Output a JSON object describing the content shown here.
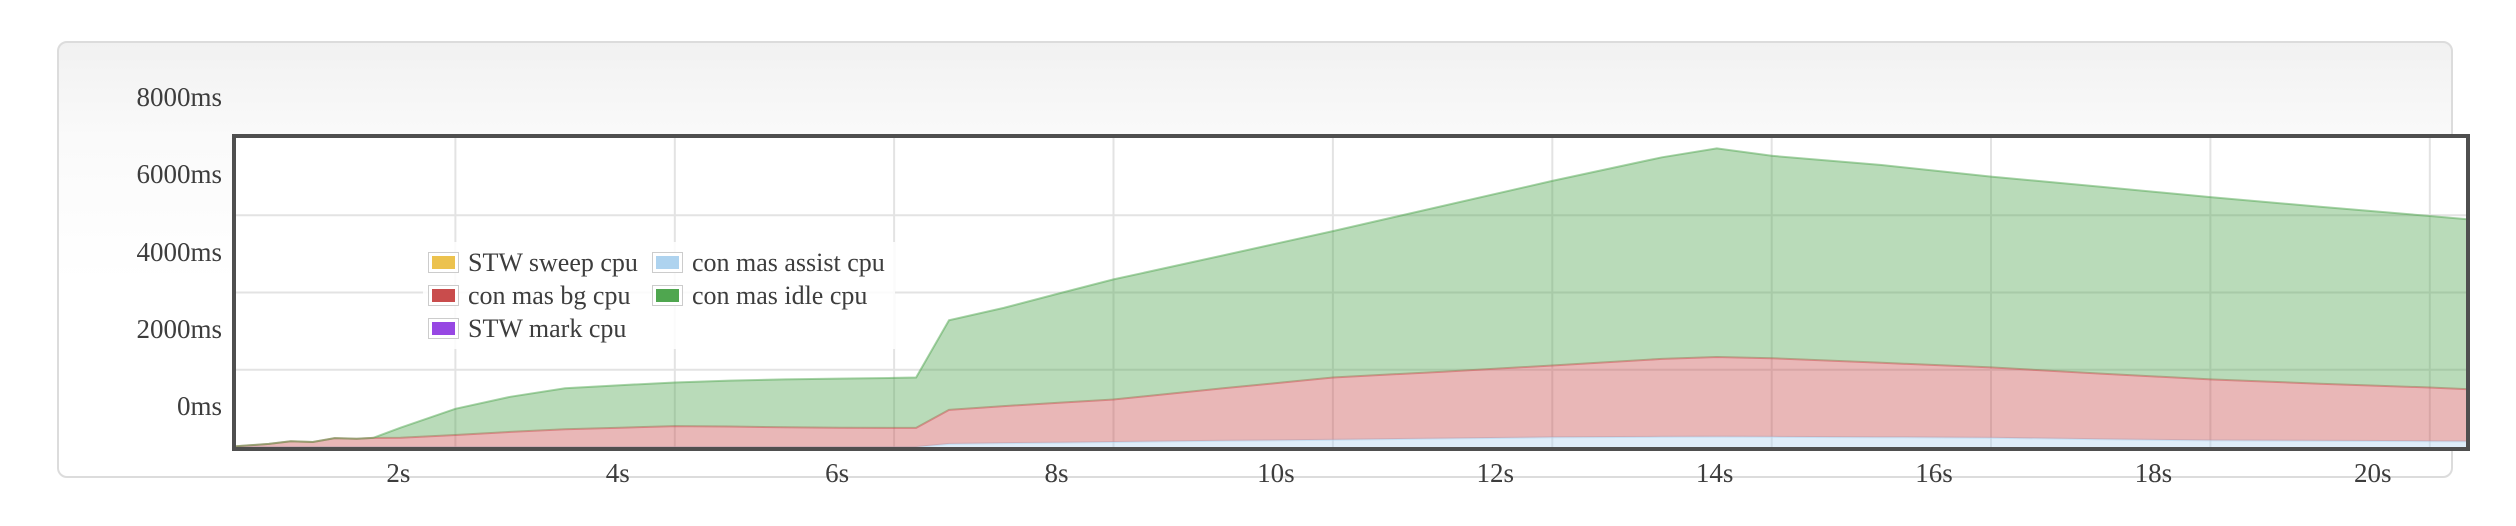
{
  "page": {
    "background": "#ffffff"
  },
  "card": {
    "border_color": "#dcdcdc",
    "bg_top": "#f1f1f1",
    "bg_bottom": "#ffffff"
  },
  "chart_data": {
    "type": "area",
    "stacked": true,
    "title": "",
    "xlabel": "",
    "ylabel": "",
    "x_unit": "s",
    "y_unit": "ms",
    "xlim": [
      0,
      20.33
    ],
    "ylim": [
      0,
      8000
    ],
    "grid": true,
    "legend_position": "top-left",
    "plot_border_color": "#4f4f4f",
    "grid_color": "#e3e3e3",
    "tick_label_color": "#3d3d3d",
    "fill_opacity": 0.4,
    "line_width": 2,
    "x": [
      0,
      0.3,
      0.5,
      0.7,
      0.9,
      1.1,
      1.25,
      1.5,
      2,
      2.5,
      3,
      3.5,
      4,
      4.5,
      5,
      5.5,
      6,
      6.2,
      6.5,
      7,
      7.5,
      8,
      9,
      10,
      11,
      12,
      13,
      13.5,
      14,
      15,
      16,
      17,
      18,
      19,
      20,
      20.33
    ],
    "series": [
      {
        "name": "STW sweep cpu",
        "color": "#ecc24e",
        "values": [
          0,
          0,
          0,
          0,
          0,
          0,
          0,
          0,
          0,
          0,
          0,
          0,
          0,
          0,
          0,
          0,
          0,
          0,
          0,
          0,
          0,
          0,
          0,
          0,
          0,
          0,
          0,
          0,
          0,
          0,
          0,
          0,
          0,
          0,
          0,
          0
        ]
      },
      {
        "name": "con mas assist cpu",
        "color": "#aed3ef",
        "values": [
          0,
          0,
          0,
          0,
          0,
          0,
          0,
          0,
          0,
          0,
          0,
          0,
          0,
          0,
          0,
          0,
          0,
          0,
          80,
          100,
          115,
          130,
          160,
          190,
          220,
          250,
          265,
          270,
          265,
          255,
          240,
          200,
          170,
          160,
          150,
          145
        ]
      },
      {
        "name": "con mas bg cpu",
        "color": "#c94c4c",
        "values": [
          20,
          80,
          150,
          130,
          230,
          215,
          235,
          240,
          310,
          390,
          460,
          500,
          540,
          530,
          510,
          500,
          495,
          495,
          880,
          960,
          1030,
          1100,
          1360,
          1610,
          1730,
          1860,
          2015,
          2060,
          2035,
          1925,
          1820,
          1700,
          1580,
          1480,
          1390,
          1355
        ]
      },
      {
        "name": "con mas idle cpu",
        "color": "#4fa64f",
        "values": [
          0,
          0,
          0,
          0,
          0,
          0,
          0,
          260,
          680,
          910,
          1060,
          1100,
          1130,
          1190,
          1240,
          1270,
          1295,
          1305,
          2320,
          2540,
          2830,
          3110,
          3440,
          3790,
          4290,
          4780,
          5220,
          5400,
          5240,
          5120,
          4940,
          4840,
          4720,
          4580,
          4440,
          4400
        ]
      },
      {
        "name": "STW mark cpu",
        "color": "#9747e3",
        "values": [
          0,
          0,
          0,
          0,
          0,
          0,
          0,
          0,
          0,
          0,
          0,
          0,
          0,
          0,
          0,
          0,
          0,
          0,
          0,
          0,
          0,
          0,
          0,
          0,
          0,
          0,
          0,
          0,
          0,
          0,
          0,
          0,
          0,
          0,
          0,
          0
        ]
      }
    ],
    "yticks": [
      {
        "v": 0,
        "label": "0ms"
      },
      {
        "v": 2000,
        "label": "2000ms"
      },
      {
        "v": 4000,
        "label": "4000ms"
      },
      {
        "v": 6000,
        "label": "6000ms"
      },
      {
        "v": 8000,
        "label": "8000ms"
      }
    ],
    "xticks": [
      {
        "v": 2,
        "label": "2s"
      },
      {
        "v": 4,
        "label": "4s"
      },
      {
        "v": 6,
        "label": "6s"
      },
      {
        "v": 8,
        "label": "8s"
      },
      {
        "v": 10,
        "label": "10s"
      },
      {
        "v": 12,
        "label": "12s"
      },
      {
        "v": 14,
        "label": "14s"
      },
      {
        "v": 16,
        "label": "16s"
      },
      {
        "v": 18,
        "label": "18s"
      },
      {
        "v": 20,
        "label": "20s"
      }
    ]
  }
}
